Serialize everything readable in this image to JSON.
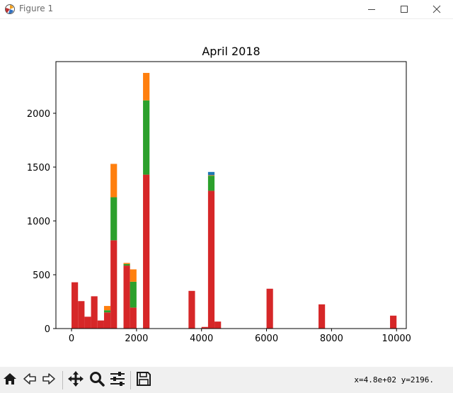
{
  "window": {
    "title": "Figure 1",
    "icons": [
      "matplotlib-icon",
      "minimize-icon",
      "maximize-icon",
      "close-icon"
    ]
  },
  "toolbar": {
    "buttons": [
      "home-icon",
      "back-icon",
      "forward-icon",
      "pan-icon",
      "zoom-icon",
      "configure-subplots-icon",
      "save-icon"
    ],
    "coords": "x=4.8e+02 y=2196."
  },
  "colors": {
    "blue": "#1f77b4",
    "orange": "#ff7f0e",
    "green": "#2ca02c",
    "red": "#d62728"
  },
  "chart_data": {
    "type": "bar",
    "stacked": true,
    "title": "April 2018",
    "xlabel": "",
    "ylabel": "",
    "xlim": [
      -480,
      10300
    ],
    "ylim": [
      0,
      2480
    ],
    "xticks": [
      0,
      2000,
      4000,
      6000,
      8000
    ],
    "xtick_labels": [
      "0",
      "2000",
      "4000",
      "6000",
      "8000"
    ],
    "extra_xtick": {
      "value": 10000,
      "label": "10000"
    },
    "yticks": [
      0,
      500,
      1000,
      1500,
      2000
    ],
    "ytick_labels": [
      "0",
      "500",
      "1000",
      "1500",
      "2000"
    ],
    "grid": false,
    "legend": "none",
    "bin_width": 200,
    "x": [
      100,
      300,
      500,
      700,
      900,
      1100,
      1300,
      1700,
      1900,
      2300,
      3700,
      4100,
      4300,
      4500,
      6100,
      7700,
      9900
    ],
    "series": [
      {
        "color": "#d62728",
        "values": [
          430,
          255,
          110,
          300,
          75,
          150,
          820,
          585,
          195,
          1430,
          350,
          15,
          1280,
          65,
          370,
          225,
          120
        ]
      },
      {
        "color": "#2ca02c",
        "values": [
          0,
          0,
          0,
          0,
          0,
          20,
          400,
          15,
          240,
          690,
          0,
          0,
          140,
          0,
          0,
          0,
          0
        ]
      },
      {
        "color": "#ff7f0e",
        "values": [
          0,
          0,
          0,
          0,
          0,
          40,
          310,
          10,
          115,
          255,
          0,
          0,
          5,
          0,
          0,
          0,
          0
        ]
      },
      {
        "color": "#1f77b4",
        "values": [
          0,
          0,
          0,
          0,
          0,
          0,
          0,
          0,
          0,
          0,
          0,
          0,
          30,
          0,
          0,
          0,
          0
        ]
      }
    ]
  }
}
